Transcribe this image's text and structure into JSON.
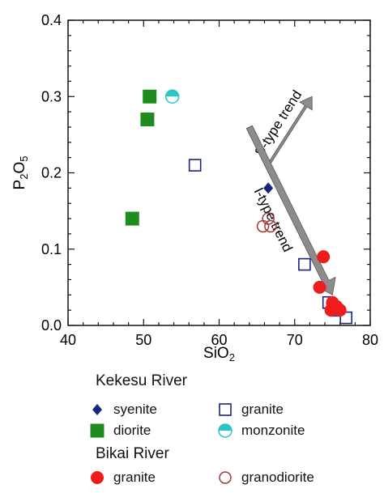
{
  "chart_data": {
    "type": "scatter",
    "xlabel": "SiO",
    "xlabel_sub": "2",
    "ylabel": "P",
    "ylabel_sub1": "2",
    "ylabel_mid": "O",
    "ylabel_sub2": "5",
    "xlim": [
      40,
      80
    ],
    "ylim": [
      0.0,
      0.4
    ],
    "xticks": [
      40,
      50,
      60,
      70,
      80
    ],
    "yticks": [
      0.0,
      0.1,
      0.2,
      0.3,
      0.4
    ],
    "xtick_labels": [
      "40",
      "50",
      "60",
      "70",
      "80"
    ],
    "ytick_labels": [
      "0.0",
      "0.1",
      "0.2",
      "0.3",
      "0.4"
    ],
    "colors": {
      "navy": "#1a237e",
      "green": "#1e8c1e",
      "red": "#ee1c1c",
      "cyan": "#29c6c6",
      "brown": "#a33a3a",
      "arrow": "#8c8c8c"
    },
    "series": [
      {
        "name": "syenite",
        "group": "Kekesu River",
        "marker": "diamond-filled",
        "color": "navy",
        "points": [
          [
            66.5,
            0.18
          ]
        ]
      },
      {
        "name": "diorite",
        "group": "Kekesu River",
        "marker": "square-filled",
        "color": "green",
        "points": [
          [
            48.5,
            0.14
          ],
          [
            50.5,
            0.27
          ],
          [
            50.8,
            0.3
          ]
        ]
      },
      {
        "name": "granite",
        "group": "Kekesu River",
        "marker": "square-open",
        "color": "navy",
        "points": [
          [
            56.8,
            0.21
          ],
          [
            71.3,
            0.08
          ],
          [
            74.5,
            0.03
          ],
          [
            75.5,
            0.02
          ],
          [
            76.8,
            0.01
          ]
        ]
      },
      {
        "name": "monzonite",
        "group": "Kekesu River",
        "marker": "circle-half",
        "color": "cyan",
        "points": [
          [
            53.8,
            0.3
          ]
        ]
      },
      {
        "name": "granite",
        "group": "Bikai River",
        "marker": "circle-filled",
        "color": "red",
        "points": [
          [
            73.8,
            0.09
          ],
          [
            73.3,
            0.05
          ],
          [
            74.8,
            0.02
          ],
          [
            75.0,
            0.03
          ],
          [
            75.5,
            0.025
          ],
          [
            76.0,
            0.02
          ]
        ]
      },
      {
        "name": "granodiorite",
        "group": "Bikai River",
        "marker": "circle-open",
        "color": "brown",
        "points": [
          [
            65.8,
            0.13
          ],
          [
            66.5,
            0.14
          ],
          [
            66.8,
            0.13
          ]
        ]
      }
    ],
    "annotations": [
      {
        "text": "S-type trend",
        "from": [
          66.5,
          0.21
        ],
        "to": [
          72.3,
          0.3
        ]
      },
      {
        "text": "I-type trend",
        "from": [
          64.0,
          0.26
        ],
        "to": [
          75.0,
          0.04
        ]
      }
    ]
  },
  "legend": {
    "groups": [
      {
        "title": "Kekesu River",
        "items": [
          {
            "label": "syenite",
            "marker": "diamond-filled",
            "color": "navy"
          },
          {
            "label": "granite",
            "marker": "square-open",
            "color": "navy"
          },
          {
            "label": "diorite",
            "marker": "square-filled",
            "color": "green"
          },
          {
            "label": "monzonite",
            "marker": "circle-half",
            "color": "cyan"
          }
        ]
      },
      {
        "title": "Bikai River",
        "items": [
          {
            "label": "granite",
            "marker": "circle-filled",
            "color": "red"
          },
          {
            "label": "granodiorite",
            "marker": "circle-open",
            "color": "brown"
          }
        ]
      }
    ]
  }
}
